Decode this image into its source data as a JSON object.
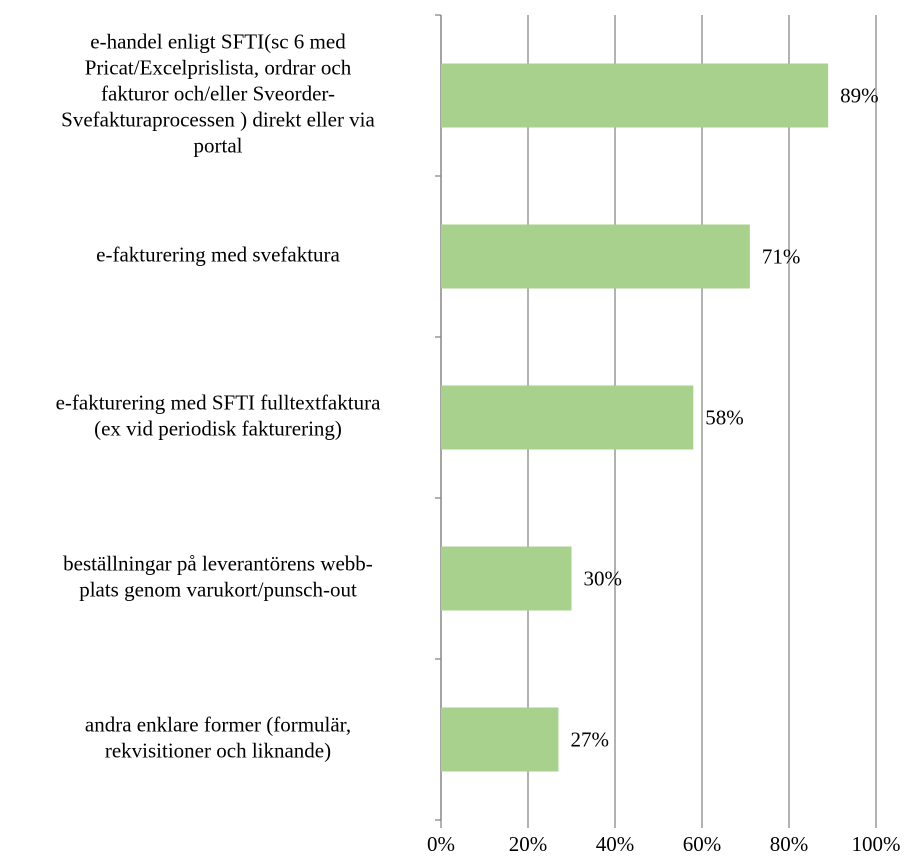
{
  "chart_data": {
    "type": "bar",
    "orientation": "horizontal",
    "categories": [
      [
        "e-handel enligt SFTI(sc 6 med",
        "Pricat/Excelprislista, ordrar och",
        "fakturor och/eller Sveorder-",
        "Svefakturaprocessen ) direkt eller via",
        "portal"
      ],
      [
        "e-fakturering med svefaktura"
      ],
      [
        "e-fakturering med SFTI fulltextfaktura",
        "(ex vid periodisk fakturering)"
      ],
      [
        "beställningar på leverantörens webb-",
        "plats genom varukort/punsch-out"
      ],
      [
        "andra enklare former (formulär,",
        "rekvisitioner och liknande)"
      ]
    ],
    "values": [
      89,
      71,
      58,
      30,
      27
    ],
    "value_labels": [
      "89%",
      "71%",
      "58%",
      "30%",
      "27%"
    ],
    "color": "#a9d18e",
    "xlim": [
      0,
      100
    ],
    "xticks": [
      {
        "value": 0,
        "label": "0%"
      },
      {
        "value": 20,
        "label": "20%"
      },
      {
        "value": 40,
        "label": "40%"
      },
      {
        "value": 60,
        "label": "60%"
      },
      {
        "value": 80,
        "label": "80%"
      },
      {
        "value": 100,
        "label": "100%"
      }
    ],
    "grid": true
  }
}
